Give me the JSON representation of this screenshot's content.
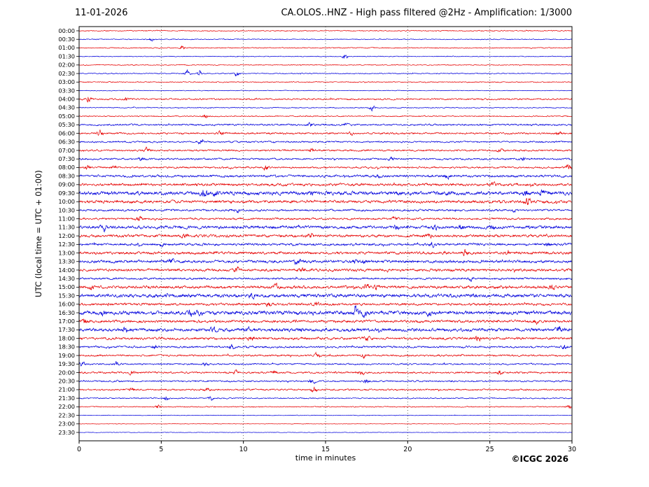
{
  "header": {
    "date": "11-01-2026",
    "title": "CA.OLOS..HNZ - High pass filtered @2Hz - Amplification: 1/3000"
  },
  "axes": {
    "y_label": "UTC (local time = UTC + 01:00)",
    "x_label": "time in minutes"
  },
  "footer": {
    "copyright": "©ICGC 2026"
  },
  "chart_data": {
    "type": "line",
    "subtype": "helicorder-seismogram",
    "title": "CA.OLOS..HNZ - High pass filtered @2Hz - Amplification: 1/3000",
    "date": "11-01-2026",
    "xlabel": "time in minutes",
    "ylabel": "UTC (local time = UTC + 01:00)",
    "xlim": [
      0,
      30
    ],
    "x_ticks": [
      0,
      5,
      10,
      15,
      20,
      25,
      30
    ],
    "grid": "vertical-dotted",
    "legend": "none",
    "colors": {
      "red": "#e60000",
      "blue": "#0000dc"
    },
    "rows": [
      {
        "label": "00:00",
        "color": "red",
        "noise": 0.5,
        "events": []
      },
      {
        "label": "00:30",
        "color": "blue",
        "noise": 0.45,
        "events": [
          {
            "t": 4.4,
            "a": 1.8
          }
        ]
      },
      {
        "label": "01:00",
        "color": "red",
        "noise": 0.5,
        "events": [
          {
            "t": 6.3,
            "a": 2.2
          }
        ]
      },
      {
        "label": "01:30",
        "color": "blue",
        "noise": 0.4,
        "events": [
          {
            "t": 16.2,
            "a": 2.6
          }
        ]
      },
      {
        "label": "02:00",
        "color": "red",
        "noise": 0.45,
        "events": []
      },
      {
        "label": "02:30",
        "color": "blue",
        "noise": 0.5,
        "events": [
          {
            "t": 6.6,
            "a": 2.8
          },
          {
            "t": 7.3,
            "a": 2.2
          },
          {
            "t": 9.6,
            "a": 2.4
          }
        ]
      },
      {
        "label": "03:00",
        "color": "red",
        "noise": 0.5,
        "events": []
      },
      {
        "label": "03:30",
        "color": "blue",
        "noise": 0.35,
        "events": []
      },
      {
        "label": "04:00",
        "color": "red",
        "noise": 0.8,
        "events": [
          {
            "t": 0.6,
            "a": 2.4
          },
          {
            "t": 2.9,
            "a": 1.8
          }
        ]
      },
      {
        "label": "04:30",
        "color": "blue",
        "noise": 0.5,
        "events": [
          {
            "t": 17.8,
            "a": 2.8
          }
        ]
      },
      {
        "label": "05:00",
        "color": "red",
        "noise": 0.55,
        "events": [
          {
            "t": 7.7,
            "a": 2.4
          }
        ]
      },
      {
        "label": "05:30",
        "color": "blue",
        "noise": 0.9,
        "events": [
          {
            "t": 14.0,
            "a": 1.8
          },
          {
            "t": 16.2,
            "a": 1.6
          }
        ]
      },
      {
        "label": "06:00",
        "color": "red",
        "noise": 0.9,
        "events": [
          {
            "t": 1.3,
            "a": 2.8
          },
          {
            "t": 8.6,
            "a": 1.8
          },
          {
            "t": 16.6,
            "a": 1.4
          },
          {
            "t": 29.2,
            "a": 2.2
          }
        ]
      },
      {
        "label": "06:30",
        "color": "blue",
        "noise": 0.8,
        "events": [
          {
            "t": 7.4,
            "a": 1.8
          }
        ]
      },
      {
        "label": "07:00",
        "color": "red",
        "noise": 0.9,
        "events": [
          {
            "t": 4.1,
            "a": 2.2
          },
          {
            "t": 14.2,
            "a": 2.4
          },
          {
            "t": 25.6,
            "a": 1.4
          }
        ]
      },
      {
        "label": "07:30",
        "color": "blue",
        "noise": 0.9,
        "events": [
          {
            "t": 3.8,
            "a": 1.8
          },
          {
            "t": 19.0,
            "a": 2.2
          },
          {
            "t": 27.0,
            "a": 1.8
          }
        ]
      },
      {
        "label": "08:00",
        "color": "red",
        "noise": 0.9,
        "events": [
          {
            "t": 0.5,
            "a": 2.2
          },
          {
            "t": 2.1,
            "a": 1.8
          },
          {
            "t": 11.4,
            "a": 2.4
          },
          {
            "t": 29.8,
            "a": 2.6
          }
        ]
      },
      {
        "label": "08:30",
        "color": "blue",
        "noise": 1.2,
        "events": [
          {
            "t": 18.2,
            "a": 1.8
          },
          {
            "t": 22.4,
            "a": 2.2
          }
        ]
      },
      {
        "label": "09:00",
        "color": "red",
        "noise": 1.3,
        "events": [
          {
            "t": 25.2,
            "a": 1.4
          }
        ]
      },
      {
        "label": "09:30",
        "color": "blue",
        "noise": 1.8,
        "events": [
          {
            "t": 7.6,
            "a": 3.6
          },
          {
            "t": 8.3,
            "a": 3.0
          },
          {
            "t": 14.2,
            "a": 1.8
          },
          {
            "t": 22.5,
            "a": 1.8
          },
          {
            "t": 27.2,
            "a": 4.2
          },
          {
            "t": 28.2,
            "a": 2.6
          }
        ]
      },
      {
        "label": "10:00",
        "color": "red",
        "noise": 1.4,
        "events": [
          {
            "t": 27.3,
            "a": 3.6
          }
        ]
      },
      {
        "label": "10:30",
        "color": "blue",
        "noise": 1.0,
        "events": [
          {
            "t": 9.6,
            "a": 2.2
          },
          {
            "t": 26.5,
            "a": 1.4
          }
        ]
      },
      {
        "label": "11:00",
        "color": "red",
        "noise": 1.0,
        "events": [
          {
            "t": 3.6,
            "a": 2.6
          },
          {
            "t": 19.2,
            "a": 1.8
          }
        ]
      },
      {
        "label": "11:30",
        "color": "blue",
        "noise": 1.5,
        "events": [
          {
            "t": 1.5,
            "a": 2.6
          },
          {
            "t": 19.3,
            "a": 2.2
          },
          {
            "t": 21.6,
            "a": 2.2
          },
          {
            "t": 23.3,
            "a": 1.8
          },
          {
            "t": 25.2,
            "a": 2.2
          }
        ]
      },
      {
        "label": "12:00",
        "color": "red",
        "noise": 1.3,
        "events": [
          {
            "t": 6.4,
            "a": 2.6
          },
          {
            "t": 14.1,
            "a": 2.2
          },
          {
            "t": 21.3,
            "a": 1.8
          }
        ]
      },
      {
        "label": "12:30",
        "color": "blue",
        "noise": 1.2,
        "events": [
          {
            "t": 5.0,
            "a": 1.8
          },
          {
            "t": 21.5,
            "a": 2.2
          },
          {
            "t": 28.5,
            "a": 1.8
          }
        ]
      },
      {
        "label": "13:00",
        "color": "red",
        "noise": 1.3,
        "events": [
          {
            "t": 23.5,
            "a": 2.6
          },
          {
            "t": 26.0,
            "a": 1.8
          }
        ]
      },
      {
        "label": "13:30",
        "color": "blue",
        "noise": 1.4,
        "events": [
          {
            "t": 5.6,
            "a": 2.6
          },
          {
            "t": 13.3,
            "a": 3.4
          },
          {
            "t": 16.8,
            "a": 2.2
          },
          {
            "t": 17.4,
            "a": 1.8
          }
        ]
      },
      {
        "label": "14:00",
        "color": "red",
        "noise": 1.3,
        "events": [
          {
            "t": 9.6,
            "a": 2.6
          },
          {
            "t": 13.6,
            "a": 2.2
          }
        ]
      },
      {
        "label": "14:30",
        "color": "blue",
        "noise": 1.0,
        "events": [
          {
            "t": 23.8,
            "a": 2.2
          }
        ]
      },
      {
        "label": "15:00",
        "color": "red",
        "noise": 1.4,
        "events": [
          {
            "t": 0.8,
            "a": 2.2
          },
          {
            "t": 12.0,
            "a": 3.0
          },
          {
            "t": 17.5,
            "a": 2.6
          },
          {
            "t": 18.1,
            "a": 2.2
          },
          {
            "t": 28.8,
            "a": 1.8
          }
        ]
      },
      {
        "label": "15:30",
        "color": "blue",
        "noise": 1.7,
        "events": [
          {
            "t": 10.5,
            "a": 1.8
          },
          {
            "t": 24.0,
            "a": 2.2
          }
        ]
      },
      {
        "label": "16:00",
        "color": "red",
        "noise": 1.2,
        "events": [
          {
            "t": 11.5,
            "a": 2.2
          },
          {
            "t": 14.5,
            "a": 1.8
          }
        ]
      },
      {
        "label": "16:30",
        "color": "blue",
        "noise": 1.8,
        "events": [
          {
            "t": 1.5,
            "a": 2.2
          },
          {
            "t": 6.8,
            "a": 2.8
          },
          {
            "t": 7.3,
            "a": 2.2
          },
          {
            "t": 16.9,
            "a": 3.6
          },
          {
            "t": 17.4,
            "a": 3.0
          },
          {
            "t": 21.3,
            "a": 2.2
          }
        ]
      },
      {
        "label": "17:00",
        "color": "red",
        "noise": 1.3,
        "events": [
          {
            "t": 0.3,
            "a": 2.6
          },
          {
            "t": 27.8,
            "a": 2.2
          }
        ]
      },
      {
        "label": "17:30",
        "color": "blue",
        "noise": 1.6,
        "events": [
          {
            "t": 2.8,
            "a": 2.6
          },
          {
            "t": 8.2,
            "a": 2.2
          },
          {
            "t": 10.2,
            "a": 2.2
          },
          {
            "t": 29.2,
            "a": 3.0
          }
        ]
      },
      {
        "label": "18:00",
        "color": "red",
        "noise": 1.2,
        "events": [
          {
            "t": 10.5,
            "a": 2.6
          },
          {
            "t": 17.5,
            "a": 2.2
          },
          {
            "t": 24.3,
            "a": 2.2
          }
        ]
      },
      {
        "label": "18:30",
        "color": "blue",
        "noise": 1.0,
        "events": [
          {
            "t": 4.6,
            "a": 1.8
          },
          {
            "t": 9.3,
            "a": 2.2
          },
          {
            "t": 29.5,
            "a": 1.8
          }
        ]
      },
      {
        "label": "19:00",
        "color": "red",
        "noise": 0.9,
        "events": [
          {
            "t": 14.5,
            "a": 2.6
          },
          {
            "t": 17.3,
            "a": 2.2
          }
        ]
      },
      {
        "label": "19:30",
        "color": "blue",
        "noise": 0.8,
        "events": [
          {
            "t": 0.2,
            "a": 2.2
          },
          {
            "t": 2.3,
            "a": 2.6
          },
          {
            "t": 7.7,
            "a": 1.8
          }
        ]
      },
      {
        "label": "20:00",
        "color": "red",
        "noise": 0.9,
        "events": [
          {
            "t": 3.2,
            "a": 2.2
          },
          {
            "t": 9.5,
            "a": 1.8
          },
          {
            "t": 11.9,
            "a": 2.6
          },
          {
            "t": 17.2,
            "a": 2.2
          },
          {
            "t": 25.6,
            "a": 3.0
          }
        ]
      },
      {
        "label": "20:30",
        "color": "blue",
        "noise": 0.8,
        "events": [
          {
            "t": 14.2,
            "a": 2.6
          },
          {
            "t": 17.5,
            "a": 2.2
          }
        ]
      },
      {
        "label": "21:00",
        "color": "red",
        "noise": 0.8,
        "events": [
          {
            "t": 3.2,
            "a": 2.2
          },
          {
            "t": 7.8,
            "a": 1.8
          },
          {
            "t": 14.3,
            "a": 3.0
          }
        ]
      },
      {
        "label": "21:30",
        "color": "blue",
        "noise": 0.6,
        "events": [
          {
            "t": 5.3,
            "a": 2.2
          },
          {
            "t": 8.0,
            "a": 1.8
          }
        ]
      },
      {
        "label": "22:00",
        "color": "red",
        "noise": 0.5,
        "events": [
          {
            "t": 4.8,
            "a": 1.8
          },
          {
            "t": 29.8,
            "a": 3.0
          }
        ]
      },
      {
        "label": "22:30",
        "color": "blue",
        "noise": 0.3,
        "events": []
      },
      {
        "label": "23:00",
        "color": "red",
        "noise": 0.25,
        "events": []
      },
      {
        "label": "23:30",
        "color": "blue",
        "noise": 0.25,
        "events": []
      }
    ]
  }
}
